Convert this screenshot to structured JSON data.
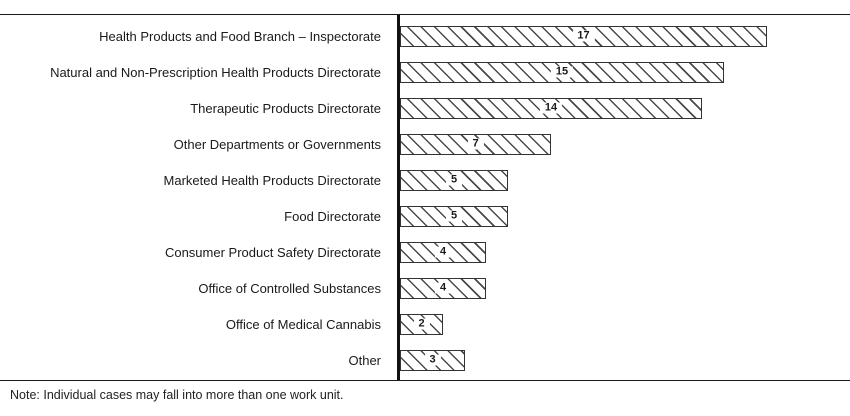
{
  "chart_data": {
    "type": "bar",
    "orientation": "horizontal",
    "title": "",
    "xlabel": "",
    "ylabel": "",
    "xlim": [
      0,
      17
    ],
    "grid": false,
    "legend": false,
    "bar_style": "diagonal-hatch",
    "categories": [
      "Health Products and Food Branch – Inspectorate",
      "Natural and Non-Prescription Health Products Directorate",
      "Therapeutic Products Directorate",
      "Other Departments or Governments",
      "Marketed Health Products Directorate",
      "Food Directorate",
      "Consumer Product Safety Directorate",
      "Office of Controlled Substances",
      "Office of Medical Cannabis",
      "Other"
    ],
    "values": [
      17,
      15,
      14,
      7,
      5,
      5,
      4,
      4,
      2,
      3
    ]
  },
  "note": "Note: Individual cases may fall into more than one work unit.",
  "colors": {
    "rule_line": "#1a1a1a",
    "axis_line": "#111111",
    "bar_border": "#333333",
    "bar_fill": "#ffffff",
    "hatch": "#4a4a4a",
    "text": "#1a1a1a"
  }
}
